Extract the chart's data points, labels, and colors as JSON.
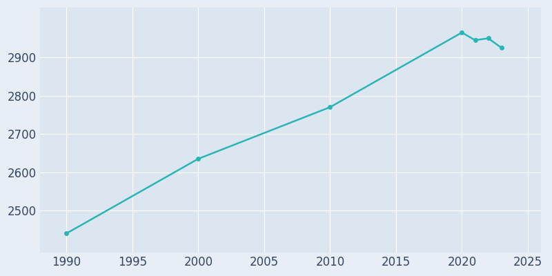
{
  "years": [
    1990,
    2000,
    2010,
    2020,
    2021,
    2022,
    2023
  ],
  "population": [
    2440,
    2635,
    2770,
    2965,
    2945,
    2950,
    2925
  ],
  "line_color": "#2ab5b5",
  "marker_color": "#2ab5b5",
  "fig_bg_color": "#e8eef5",
  "plot_bg_color": "#dce6f0",
  "grid_color": "#ffffff",
  "tick_color": "#334466",
  "xlim": [
    1988,
    2026
  ],
  "ylim": [
    2390,
    3030
  ],
  "xticks": [
    1990,
    1995,
    2000,
    2005,
    2010,
    2015,
    2020,
    2025
  ],
  "yticks": [
    2500,
    2600,
    2700,
    2800,
    2900
  ],
  "marker_size": 4,
  "line_width": 1.8,
  "tick_labelsize": 12
}
